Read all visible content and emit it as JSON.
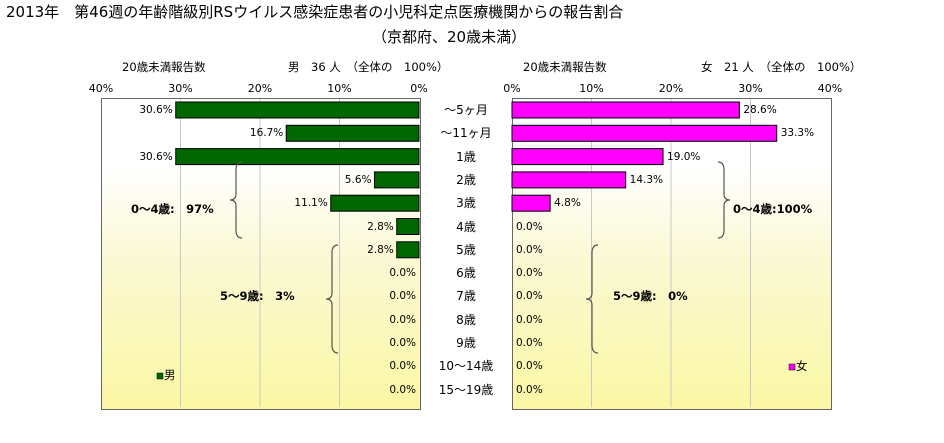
{
  "title": "2013年　第46週の年齢階級別RSウイルス感染症患者の小児科定点医療機関からの報告割合",
  "subtitle": "（京都府、20歳未満）",
  "chart_data": {
    "type": "bar",
    "orientation": "horizontal-butterfly",
    "categories": [
      "～5ヶ月",
      "～11ヶ月",
      "1歳",
      "2歳",
      "3歳",
      "4歳",
      "5歳",
      "6歳",
      "7歳",
      "8歳",
      "9歳",
      "10～14歳",
      "15～19歳"
    ],
    "xlim": [
      0,
      40
    ],
    "ticks": [
      "40%",
      "30%",
      "20%",
      "10%",
      "0%"
    ],
    "ticks_right": [
      "0%",
      "10%",
      "20%",
      "30%",
      "40%"
    ],
    "series": [
      {
        "name": "男",
        "axis_label": "20歳未満報告数",
        "header": "男　36 人　（全体の　100%）",
        "color": "#006600",
        "values": [
          30.6,
          16.7,
          30.6,
          5.6,
          11.1,
          2.8,
          2.8,
          0.0,
          0.0,
          0.0,
          0.0,
          0.0,
          0.0
        ],
        "labels": [
          "30.6%",
          "16.7%",
          "30.6%",
          "5.6%",
          "11.1%",
          "2.8%",
          "2.8%",
          "0.0%",
          "0.0%",
          "0.0%",
          "0.0%",
          "0.0%",
          "0.0%"
        ],
        "annotations": [
          "0～4歳:　97%",
          "5～9歳:　3%"
        ]
      },
      {
        "name": "女",
        "axis_label": "20歳未満報告数",
        "header": "女　21 人　（全体の　100%）",
        "color": "#ff00ff",
        "values": [
          28.6,
          33.3,
          19.0,
          14.3,
          4.8,
          0.0,
          0.0,
          0.0,
          0.0,
          0.0,
          0.0,
          0.0,
          0.0
        ],
        "labels": [
          "28.6%",
          "33.3%",
          "19.0%",
          "14.3%",
          "4.8%",
          "0.0%",
          "0.0%",
          "0.0%",
          "0.0%",
          "0.0%",
          "0.0%",
          "0.0%",
          "0.0%"
        ],
        "annotations": [
          "0～4歳:100%",
          "5～9歳:　0%"
        ]
      }
    ],
    "legend": [
      "男",
      "女"
    ]
  }
}
